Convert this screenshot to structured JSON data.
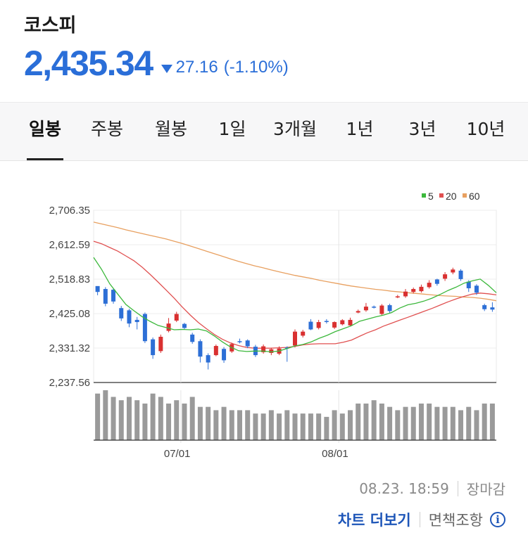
{
  "header": {
    "title": "코스피",
    "price": "2,435.34",
    "change": "27.16",
    "change_pct": "(-1.10%)",
    "direction_icon": "down-triangle-icon",
    "color": "#2a6ed8"
  },
  "tabs": [
    {
      "label": "일봉",
      "active": true
    },
    {
      "label": "주봉",
      "active": false
    },
    {
      "label": "월봉",
      "active": false
    },
    {
      "label": "1일",
      "active": false
    },
    {
      "label": "3개월",
      "active": false
    },
    {
      "label": "1년",
      "active": false
    },
    {
      "label": "3년",
      "active": false
    },
    {
      "label": "10년",
      "active": false
    }
  ],
  "chart_data": {
    "type": "candlestick",
    "y_ticks": [
      "2,706.35",
      "2,612.59",
      "2,518.83",
      "2,425.08",
      "2,331.32",
      "2,237.56"
    ],
    "ylim": [
      2237.56,
      2706.35
    ],
    "x_ticks": [
      "07/01",
      "08/01"
    ],
    "legend": {
      "placement": "top-right",
      "items": [
        {
          "label": "5",
          "color": "#3cb83c"
        },
        {
          "label": "20",
          "color": "#e05050"
        },
        {
          "label": "60",
          "color": "#e8a060"
        }
      ]
    },
    "up_color": "#d93030",
    "down_color": "#2d6fd6",
    "candles": [
      [
        2500,
        2484,
        2492,
        2475
      ],
      [
        2492,
        2452,
        2497,
        2445
      ],
      [
        2490,
        2458,
        2494,
        2452
      ],
      [
        2440,
        2412,
        2446,
        2405
      ],
      [
        2434,
        2398,
        2438,
        2388
      ],
      [
        2408,
        2402,
        2416,
        2382
      ],
      [
        2424,
        2350,
        2428,
        2345
      ],
      [
        2355,
        2312,
        2360,
        2302
      ],
      [
        2323,
        2362,
        2368,
        2318
      ],
      [
        2378,
        2398,
        2413,
        2374
      ],
      [
        2406,
        2424,
        2430,
        2402
      ],
      [
        2397,
        2386,
        2400,
        2383
      ],
      [
        2368,
        2348,
        2373,
        2343
      ],
      [
        2350,
        2308,
        2355,
        2292
      ],
      [
        2312,
        2292,
        2317,
        2273
      ],
      [
        2312,
        2337,
        2341,
        2309
      ],
      [
        2329,
        2298,
        2334,
        2291
      ],
      [
        2322,
        2342,
        2346,
        2318
      ],
      [
        2350,
        2349,
        2357,
        2344
      ],
      [
        2352,
        2336,
        2355,
        2331
      ],
      [
        2335,
        2312,
        2340,
        2307
      ],
      [
        2320,
        2336,
        2341,
        2316
      ],
      [
        2318,
        2328,
        2332,
        2312
      ],
      [
        2316,
        2330,
        2336,
        2312
      ],
      [
        2333,
        2331,
        2336,
        2294
      ],
      [
        2338,
        2376,
        2382,
        2333
      ],
      [
        2365,
        2376,
        2381,
        2360
      ],
      [
        2403,
        2382,
        2410,
        2380
      ],
      [
        2386,
        2402,
        2408,
        2382
      ],
      [
        2405,
        2403,
        2410,
        2398
      ],
      [
        2387,
        2402,
        2404,
        2383
      ],
      [
        2396,
        2407,
        2410,
        2393
      ],
      [
        2393,
        2408,
        2414,
        2390
      ],
      [
        2428,
        2432,
        2436,
        2426
      ],
      [
        2434,
        2444,
        2454,
        2430
      ],
      [
        2444,
        2442,
        2447,
        2439
      ],
      [
        2424,
        2447,
        2451,
        2420
      ],
      [
        2448,
        2432,
        2452,
        2426
      ],
      [
        2470,
        2472,
        2476,
        2467
      ],
      [
        2472,
        2485,
        2492,
        2468
      ],
      [
        2484,
        2492,
        2496,
        2480
      ],
      [
        2486,
        2498,
        2504,
        2482
      ],
      [
        2497,
        2509,
        2516,
        2493
      ],
      [
        2518,
        2506,
        2520,
        2501
      ],
      [
        2520,
        2532,
        2538,
        2514
      ],
      [
        2537,
        2545,
        2550,
        2532
      ],
      [
        2542,
        2519,
        2546,
        2514
      ],
      [
        2512,
        2494,
        2516,
        2484
      ],
      [
        2501,
        2482,
        2505,
        2476
      ],
      [
        2448,
        2437,
        2452,
        2432
      ],
      [
        2442,
        2436,
        2456,
        2430
      ]
    ],
    "ma5": [
      2578,
      2545,
      2506,
      2478,
      2450,
      2433,
      2417,
      2404,
      2393,
      2387,
      2381,
      2382,
      2381,
      2383,
      2378,
      2364,
      2348,
      2334,
      2324,
      2322,
      2323,
      2323,
      2321,
      2323,
      2330,
      2337,
      2341,
      2348,
      2358,
      2366,
      2376,
      2384,
      2392,
      2404,
      2410,
      2416,
      2421,
      2428,
      2440,
      2449,
      2453,
      2459,
      2467,
      2477,
      2488,
      2497,
      2508,
      2514,
      2519,
      2502,
      2482
    ],
    "ma20": [
      2622,
      2615,
      2605,
      2595,
      2582,
      2569,
      2552,
      2532,
      2511,
      2489,
      2467,
      2443,
      2421,
      2401,
      2384,
      2368,
      2355,
      2345,
      2338,
      2333,
      2331,
      2331,
      2331,
      2332,
      2333,
      2336,
      2340,
      2342,
      2343,
      2343,
      2343,
      2347,
      2353,
      2363,
      2373,
      2381,
      2391,
      2399,
      2407,
      2415,
      2423,
      2431,
      2439,
      2448,
      2457,
      2465,
      2472,
      2478,
      2481,
      2479,
      2476
    ],
    "ma60": [
      2674,
      2669,
      2664,
      2659,
      2653,
      2648,
      2643,
      2638,
      2633,
      2628,
      2622,
      2616,
      2609,
      2602,
      2595,
      2588,
      2581,
      2574,
      2567,
      2561,
      2555,
      2550,
      2544,
      2539,
      2534,
      2529,
      2525,
      2521,
      2516,
      2512,
      2508,
      2504,
      2500,
      2497,
      2494,
      2491,
      2489,
      2486,
      2484,
      2482,
      2480,
      2478,
      2476,
      2474,
      2473,
      2472,
      2470,
      2469,
      2467,
      2464,
      2460
    ],
    "volume": [
      14,
      15,
      13,
      12,
      13,
      12,
      11,
      14,
      13,
      11,
      12,
      11,
      13,
      10,
      10,
      9,
      10,
      9,
      9,
      9,
      8,
      8,
      9,
      8,
      9,
      8,
      8,
      8,
      8,
      7,
      9,
      8,
      9,
      11,
      11,
      12,
      11,
      10,
      9,
      10,
      10,
      11,
      11,
      10,
      10,
      10,
      9,
      10,
      9,
      11,
      11
    ],
    "volume_max": 15
  },
  "footer": {
    "timestamp": "08.23. 18:59",
    "status": "장마감",
    "more_link": "차트 더보기",
    "disclaimer": "면책조항",
    "info_icon": "info-icon"
  }
}
